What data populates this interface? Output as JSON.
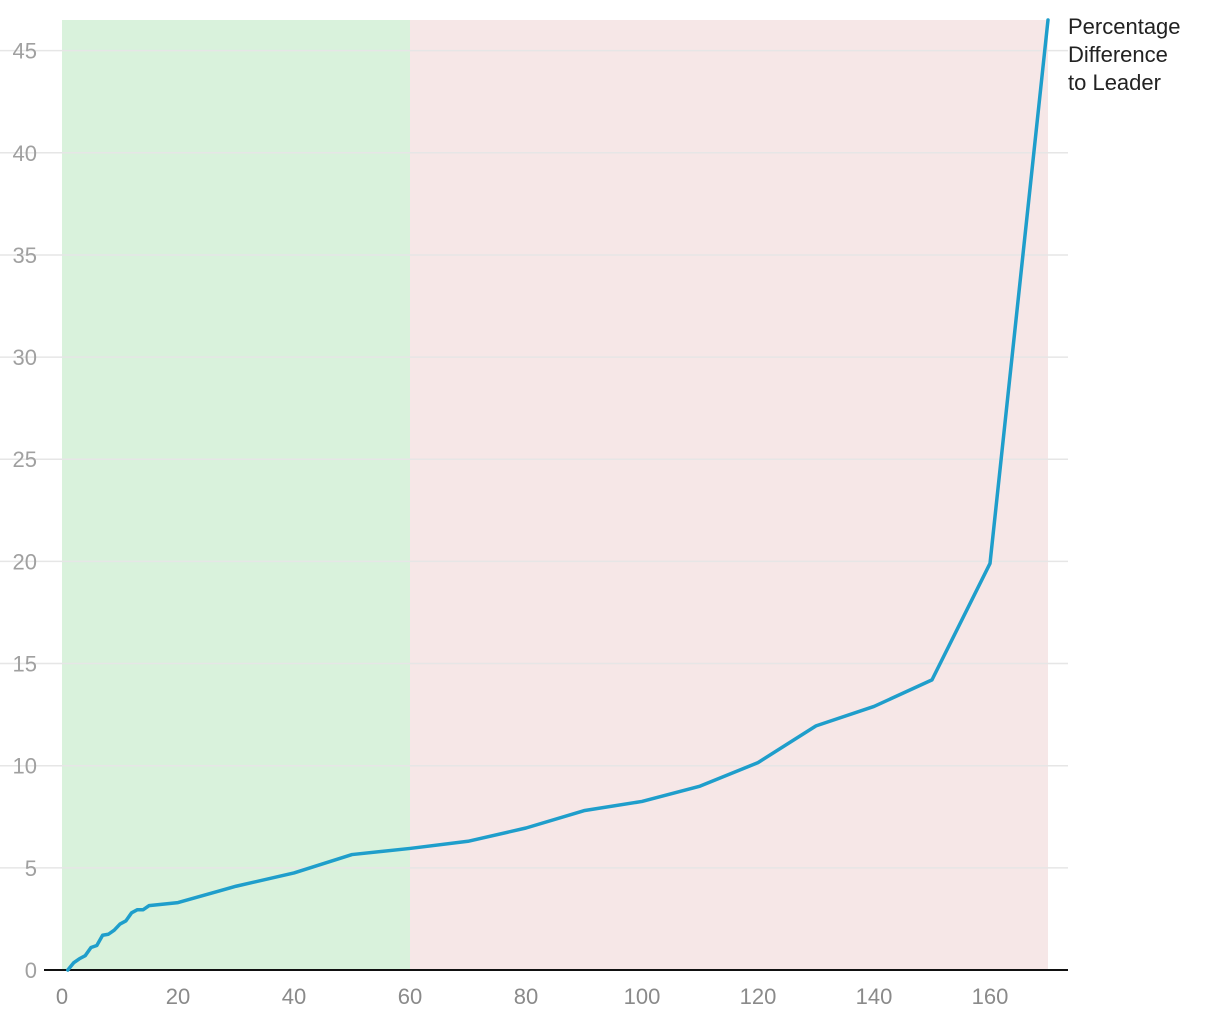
{
  "chart_data": {
    "type": "line",
    "title": "",
    "xlabel": "",
    "ylabel": "",
    "xlim": [
      0,
      170
    ],
    "ylim": [
      0,
      46.5
    ],
    "x_ticks": [
      0,
      20,
      40,
      60,
      80,
      100,
      120,
      140,
      160
    ],
    "y_ticks": [
      0,
      5,
      10,
      15,
      20,
      25,
      30,
      35,
      40,
      45
    ],
    "grid": true,
    "shaded_regions": [
      {
        "x_from": 0,
        "x_to": 60,
        "color": "#d9f2dc"
      },
      {
        "x_from": 60,
        "x_to": 170,
        "color": "#f6e7e7"
      }
    ],
    "series": [
      {
        "name": "Percentage Difference to Leader",
        "color": "#1f9ecb",
        "x": [
          1,
          2,
          3,
          4,
          5,
          6,
          7,
          8,
          9,
          10,
          11,
          12,
          13,
          14,
          15,
          20,
          30,
          40,
          50,
          60,
          70,
          80,
          90,
          100,
          110,
          120,
          130,
          140,
          150,
          160,
          170
        ],
        "y": [
          0,
          0.35,
          0.55,
          0.7,
          1.1,
          1.2,
          1.7,
          1.75,
          1.95,
          2.25,
          2.4,
          2.8,
          2.95,
          2.95,
          3.15,
          3.3,
          4.1,
          4.75,
          5.65,
          5.95,
          6.3,
          6.95,
          7.8,
          8.25,
          9.0,
          10.15,
          11.95,
          12.9,
          14.2,
          19.9,
          46.5
        ]
      }
    ]
  }
}
